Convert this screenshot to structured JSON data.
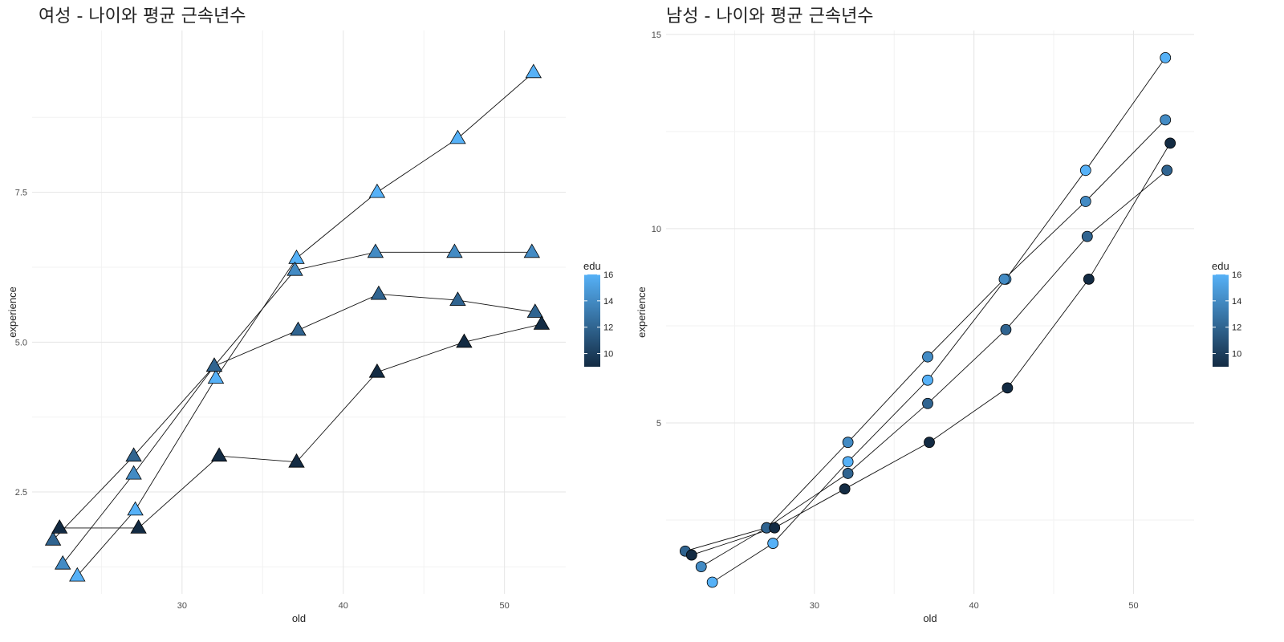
{
  "colors": {
    "edu_low": "#132B43",
    "edu_high": "#56B1F7",
    "grid_major": "#e5e5e5",
    "grid_minor": "#f2f2f2",
    "line": "#111111",
    "marker_stroke": "#000000"
  },
  "chart_data": [
    {
      "type": "line",
      "title": "여성 - 나이와 평균 근속년수",
      "xlabel": "old",
      "ylabel": "experience",
      "xlim": [
        20.7,
        53.8
      ],
      "ylim": [
        0.8,
        10.2
      ],
      "x_ticks": [
        30,
        40,
        50
      ],
      "y_ticks": [
        2.5,
        5.0,
        7.5
      ],
      "y_tick_labels": [
        "2.5",
        "5.0",
        "7.5"
      ],
      "marker": "triangle",
      "grid": true,
      "legend": {
        "title": "edu",
        "position": "right",
        "min": 9,
        "max": 16,
        "ticks": [
          10,
          12,
          14,
          16
        ]
      },
      "series": [
        {
          "edu": 16,
          "x": [
            23.5,
            27.1,
            32.1,
            37.1,
            42.1,
            47.1,
            51.8
          ],
          "y": [
            1.1,
            2.2,
            4.4,
            6.4,
            7.5,
            8.4,
            9.5
          ]
        },
        {
          "edu": 14,
          "x": [
            22.6,
            27.0,
            32.0,
            37.0,
            42.0,
            46.9,
            51.7
          ],
          "y": [
            1.3,
            2.8,
            4.6,
            6.2,
            6.5,
            6.5,
            6.5
          ]
        },
        {
          "edu": 12,
          "x": [
            22.0,
            27.0,
            32.0,
            37.2,
            42.2,
            47.1,
            51.9
          ],
          "y": [
            1.7,
            3.1,
            4.6,
            5.2,
            5.8,
            5.7,
            5.5
          ]
        },
        {
          "edu": 9,
          "x": [
            22.4,
            27.3,
            32.3,
            37.1,
            42.1,
            47.5,
            52.3
          ],
          "y": [
            1.9,
            1.9,
            3.1,
            3.0,
            4.5,
            5.0,
            5.3
          ]
        }
      ]
    },
    {
      "type": "line",
      "title": "남성 - 나이와 평균 근속년수",
      "xlabel": "old",
      "ylabel": "experience",
      "xlim": [
        20.7,
        53.8
      ],
      "ylim": [
        0.6,
        15.1
      ],
      "x_ticks": [
        30,
        40,
        50
      ],
      "y_ticks": [
        5,
        10,
        15
      ],
      "y_tick_labels": [
        "5",
        "10",
        "15"
      ],
      "marker": "circle",
      "grid": true,
      "legend": {
        "title": "edu",
        "position": "right",
        "min": 9,
        "max": 16,
        "ticks": [
          10,
          12,
          14,
          16
        ]
      },
      "series": [
        {
          "edu": 16,
          "x": [
            23.6,
            27.4,
            32.1,
            37.1,
            42.0,
            47.0,
            52.0
          ],
          "y": [
            0.9,
            1.9,
            4.0,
            6.1,
            8.7,
            11.5,
            14.4
          ]
        },
        {
          "edu": 14,
          "x": [
            22.9,
            27.0,
            32.1,
            37.1,
            41.9,
            47.0,
            52.0
          ],
          "y": [
            1.3,
            2.3,
            4.5,
            6.7,
            8.7,
            10.7,
            12.8
          ]
        },
        {
          "edu": 12,
          "x": [
            21.9,
            27.0,
            32.1,
            37.1,
            42.0,
            47.1,
            52.1
          ],
          "y": [
            1.7,
            2.3,
            3.7,
            5.5,
            7.4,
            9.8,
            11.5
          ]
        },
        {
          "edu": 9,
          "x": [
            22.3,
            27.5,
            31.9,
            37.2,
            42.1,
            47.2,
            52.3
          ],
          "y": [
            1.6,
            2.3,
            3.3,
            4.5,
            5.9,
            8.7,
            12.2
          ]
        }
      ]
    }
  ]
}
